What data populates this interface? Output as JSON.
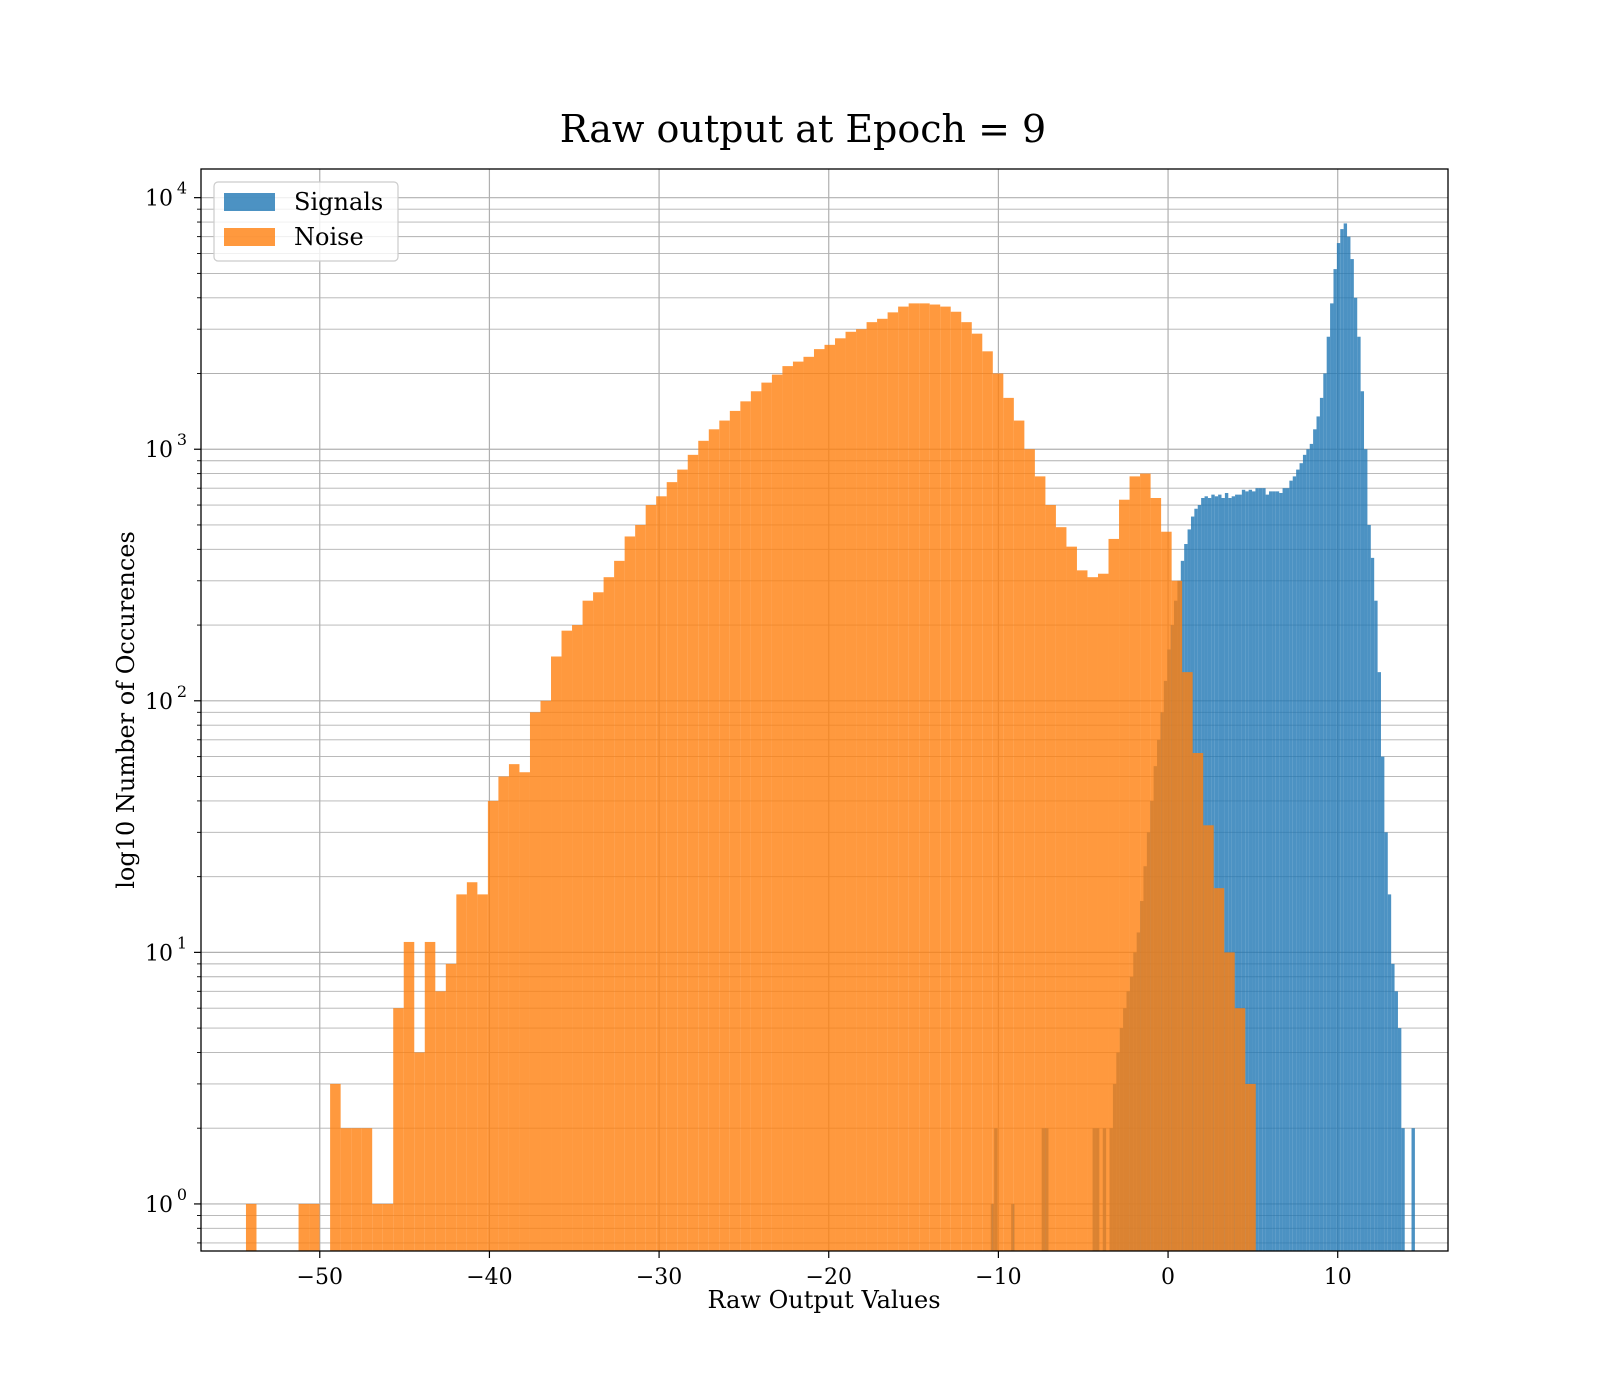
{
  "chart_data": {
    "type": "bar",
    "title": "Raw output at Epoch = 9",
    "xlabel": "Raw Output Values",
    "ylabel": "log10 Number of Occurences",
    "yscale": "log",
    "xlim": [
      -57,
      16.5
    ],
    "ylim": [
      0.65,
      13000
    ],
    "x_ticks": [
      -50,
      -40,
      -30,
      -20,
      -10,
      0,
      10
    ],
    "x_tick_labels": [
      "−50",
      "−40",
      "−30",
      "−20",
      "−10",
      "0",
      "10"
    ],
    "y_ticks": [
      {
        "value": 1,
        "base": "10",
        "exp": "0"
      },
      {
        "value": 10,
        "base": "10",
        "exp": "1"
      },
      {
        "value": 100,
        "base": "10",
        "exp": "2"
      },
      {
        "value": 1000,
        "base": "10",
        "exp": "3"
      },
      {
        "value": 10000,
        "base": "10",
        "exp": "4"
      }
    ],
    "grid": true,
    "grid_minor_y": true,
    "legend_position": "top-left",
    "series": [
      {
        "name": "Signals",
        "color": "#1f77b4",
        "opacity": 0.8,
        "bin_start": -10.45,
        "bin_width": 0.2,
        "values": [
          1,
          2,
          0,
          0,
          0,
          0,
          1,
          0,
          0,
          0,
          0,
          0,
          0,
          0,
          0,
          2,
          2,
          0,
          0,
          0,
          0,
          0,
          0,
          0,
          0,
          0,
          0,
          0,
          0,
          0,
          2,
          2,
          0,
          2,
          0,
          2,
          3,
          4,
          5,
          6,
          7,
          8,
          10,
          12,
          16,
          22,
          30,
          40,
          55,
          70,
          90,
          120,
          160,
          200,
          250,
          300,
          360,
          420,
          480,
          540,
          580,
          600,
          640,
          650,
          640,
          660,
          650,
          660,
          640,
          670,
          640,
          650,
          660,
          660,
          690,
          680,
          690,
          680,
          700,
          700,
          700,
          660,
          680,
          680,
          680,
          670,
          700,
          700,
          750,
          780,
          830,
          880,
          950,
          1000,
          1050,
          1200,
          1350,
          1600,
          2000,
          2800,
          3800,
          5200,
          6600,
          7500,
          7900,
          7000,
          5700,
          4000,
          2800,
          1700,
          1000,
          500,
          370,
          250,
          130,
          60,
          30,
          17,
          9,
          7,
          5,
          2,
          0,
          0,
          2
        ]
      },
      {
        "name": "Noise",
        "color": "#ff7f0e",
        "opacity": 0.8,
        "bin_start": -54.35,
        "bin_width": 0.62,
        "values": [
          1,
          0,
          0,
          0,
          0,
          1,
          1,
          0,
          3,
          2,
          2,
          2,
          1,
          1,
          6,
          11,
          4,
          11,
          7,
          9,
          17,
          19,
          17,
          40,
          50,
          56,
          52,
          90,
          100,
          150,
          190,
          200,
          250,
          270,
          310,
          360,
          450,
          500,
          600,
          650,
          740,
          830,
          950,
          1080,
          1200,
          1300,
          1420,
          1550,
          1700,
          1840,
          1980,
          2140,
          2230,
          2330,
          2500,
          2600,
          2760,
          2930,
          3000,
          3200,
          3300,
          3500,
          3690,
          3800,
          3800,
          3760,
          3690,
          3520,
          3200,
          2880,
          2450,
          2000,
          1600,
          1300,
          1000,
          780,
          600,
          490,
          410,
          330,
          310,
          320,
          440,
          630,
          780,
          800,
          640,
          470,
          300,
          130,
          62,
          32,
          18,
          10,
          6,
          3
        ]
      }
    ]
  }
}
